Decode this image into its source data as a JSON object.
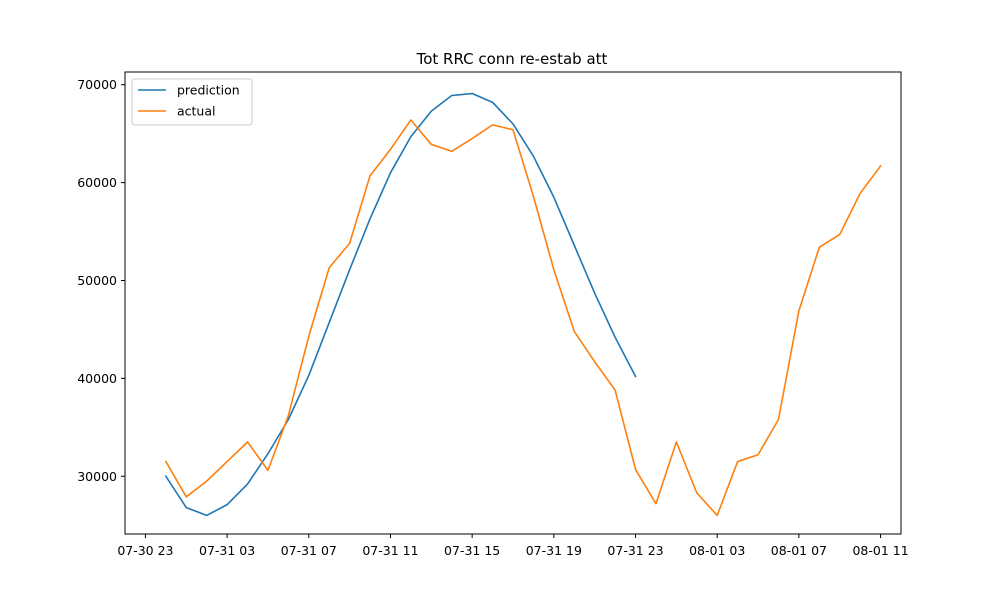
{
  "chart_data": {
    "type": "line",
    "title": "Tot RRC conn re-estab att",
    "xlabel": "",
    "ylabel": "",
    "x_range_hours": [
      "2018-07-30 22:00",
      "2018-08-01 12:00"
    ],
    "x_ticks": [
      {
        "t": "2018-07-30 23:00",
        "label": "07-30 23"
      },
      {
        "t": "2018-07-31 03:00",
        "label": "07-31 03"
      },
      {
        "t": "2018-07-31 07:00",
        "label": "07-31 07"
      },
      {
        "t": "2018-07-31 11:00",
        "label": "07-31 11"
      },
      {
        "t": "2018-07-31 15:00",
        "label": "07-31 15"
      },
      {
        "t": "2018-07-31 19:00",
        "label": "07-31 19"
      },
      {
        "t": "2018-07-31 23:00",
        "label": "07-31 23"
      },
      {
        "t": "2018-08-01 03:00",
        "label": "08-01 03"
      },
      {
        "t": "2018-08-01 07:00",
        "label": "08-01 07"
      },
      {
        "t": "2018-08-01 11:00",
        "label": "08-01 11"
      }
    ],
    "ylim": [
      24100,
      71300
    ],
    "y_ticks": [
      30000,
      40000,
      50000,
      60000,
      70000
    ],
    "y_tick_labels": [
      "30000",
      "40000",
      "50000",
      "60000",
      "70000"
    ],
    "grid": false,
    "legend_position": "top-left",
    "series": [
      {
        "name": "prediction",
        "color": "#1f77b4",
        "points": [
          {
            "t": "2018-07-31 00:00",
            "y": 30000
          },
          {
            "t": "2018-07-31 01:00",
            "y": 26800
          },
          {
            "t": "2018-07-31 02:00",
            "y": 26000
          },
          {
            "t": "2018-07-31 03:00",
            "y": 27100
          },
          {
            "t": "2018-07-31 04:00",
            "y": 29200
          },
          {
            "t": "2018-07-31 05:00",
            "y": 32300
          },
          {
            "t": "2018-07-31 06:00",
            "y": 35800
          },
          {
            "t": "2018-07-31 07:00",
            "y": 40300
          },
          {
            "t": "2018-07-31 08:00",
            "y": 45700
          },
          {
            "t": "2018-07-31 09:00",
            "y": 51100
          },
          {
            "t": "2018-07-31 10:00",
            "y": 56300
          },
          {
            "t": "2018-07-31 11:00",
            "y": 61000
          },
          {
            "t": "2018-07-31 12:00",
            "y": 64700
          },
          {
            "t": "2018-07-31 13:00",
            "y": 67300
          },
          {
            "t": "2018-07-31 14:00",
            "y": 68900
          },
          {
            "t": "2018-07-31 15:00",
            "y": 69100
          },
          {
            "t": "2018-07-31 16:00",
            "y": 68200
          },
          {
            "t": "2018-07-31 17:00",
            "y": 66000
          },
          {
            "t": "2018-07-31 18:00",
            "y": 62700
          },
          {
            "t": "2018-07-31 19:00",
            "y": 58500
          },
          {
            "t": "2018-07-31 20:00",
            "y": 53600
          },
          {
            "t": "2018-07-31 21:00",
            "y": 48700
          },
          {
            "t": "2018-07-31 22:00",
            "y": 44200
          },
          {
            "t": "2018-07-31 23:00",
            "y": 40200
          }
        ]
      },
      {
        "name": "actual",
        "color": "#ff7f0e",
        "points": [
          {
            "t": "2018-07-31 00:00",
            "y": 31500
          },
          {
            "t": "2018-07-31 01:00",
            "y": 27900
          },
          {
            "t": "2018-07-31 02:00",
            "y": 29500
          },
          {
            "t": "2018-07-31 03:00",
            "y": 31500
          },
          {
            "t": "2018-07-31 04:00",
            "y": 33500
          },
          {
            "t": "2018-07-31 05:00",
            "y": 30600
          },
          {
            "t": "2018-07-31 06:00",
            "y": 36200
          },
          {
            "t": "2018-07-31 07:00",
            "y": 44300
          },
          {
            "t": "2018-07-31 08:00",
            "y": 51300
          },
          {
            "t": "2018-07-31 09:00",
            "y": 53800
          },
          {
            "t": "2018-07-31 10:00",
            "y": 60700
          },
          {
            "t": "2018-07-31 11:00",
            "y": 63400
          },
          {
            "t": "2018-07-31 12:00",
            "y": 66400
          },
          {
            "t": "2018-07-31 13:00",
            "y": 63900
          },
          {
            "t": "2018-07-31 14:00",
            "y": 63200
          },
          {
            "t": "2018-07-31 15:00",
            "y": 64500
          },
          {
            "t": "2018-07-31 16:00",
            "y": 65900
          },
          {
            "t": "2018-07-31 17:00",
            "y": 65400
          },
          {
            "t": "2018-07-31 18:00",
            "y": 58600
          },
          {
            "t": "2018-07-31 19:00",
            "y": 51100
          },
          {
            "t": "2018-07-31 20:00",
            "y": 44800
          },
          {
            "t": "2018-07-31 21:00",
            "y": 41700
          },
          {
            "t": "2018-07-31 22:00",
            "y": 38800
          },
          {
            "t": "2018-07-31 23:00",
            "y": 30700
          },
          {
            "t": "2018-08-01 00:00",
            "y": 27200
          },
          {
            "t": "2018-08-01 01:00",
            "y": 33500
          },
          {
            "t": "2018-08-01 02:00",
            "y": 28300
          },
          {
            "t": "2018-08-01 03:00",
            "y": 26000
          },
          {
            "t": "2018-08-01 04:00",
            "y": 31500
          },
          {
            "t": "2018-08-01 05:00",
            "y": 32200
          },
          {
            "t": "2018-08-01 06:00",
            "y": 35800
          },
          {
            "t": "2018-08-01 07:00",
            "y": 46900
          },
          {
            "t": "2018-08-01 08:00",
            "y": 53400
          },
          {
            "t": "2018-08-01 09:00",
            "y": 54700
          },
          {
            "t": "2018-08-01 10:00",
            "y": 58900
          },
          {
            "t": "2018-08-01 11:00",
            "y": 61700
          }
        ]
      }
    ]
  }
}
